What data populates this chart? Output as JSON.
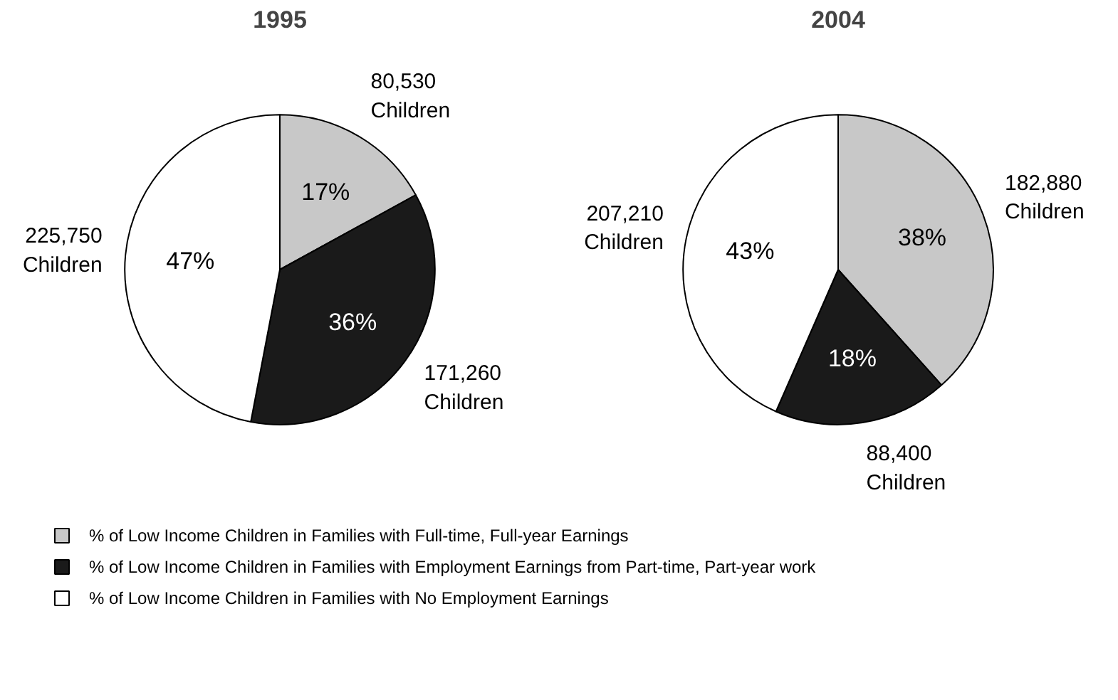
{
  "chart_data": [
    {
      "type": "pie",
      "title": "1995",
      "categories": [
        "% of Low Income Children in Families with Full-time, Full-year Earnings",
        "% of Low Income Children in Families with Employment Earnings from Part-time, Part-year work",
        "% of Low Income Children in Families with No Employment Earnings"
      ],
      "values": [
        17,
        36,
        47
      ],
      "value_labels": [
        "17%",
        "36%",
        "47%"
      ],
      "colors": [
        "#c8c8c8",
        "#1a1a1a",
        "#ffffff"
      ],
      "annotations": [
        "80,530\nChildren",
        "171,260\nChildren",
        "225,750\nChildren"
      ],
      "legend": "bottom"
    },
    {
      "type": "pie",
      "title": "2004",
      "values": [
        38,
        18,
        43
      ],
      "value_labels": [
        "38%",
        "18%",
        "43%"
      ],
      "colors": [
        "#c8c8c8",
        "#1a1a1a",
        "#ffffff"
      ],
      "annotations": [
        "182,880\nChildren",
        "88,400\nChildren",
        "207,210\nChildren"
      ]
    }
  ]
}
